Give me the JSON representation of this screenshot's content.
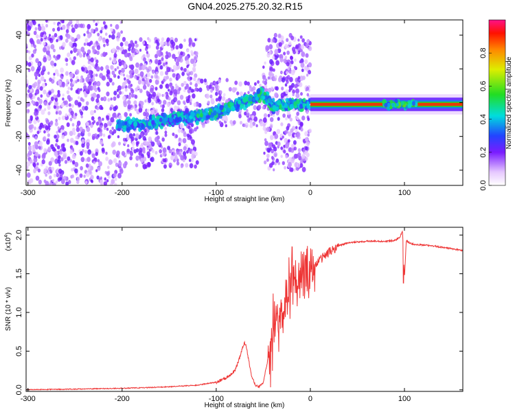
{
  "chart_data": [
    {
      "type": "heatmap",
      "title": "GN04.2025.275.20.32.R15",
      "xlabel": "Height of straight line (km)",
      "ylabel": "Frequency (Hz)",
      "xlim": [
        -302,
        162
      ],
      "ylim": [
        -49,
        49
      ],
      "xticks": [
        -300,
        -200,
        -100,
        0,
        100
      ],
      "yticks": [
        -40,
        -20,
        0,
        20,
        40
      ],
      "colorbar": {
        "label": "Normalized spectral amplitude",
        "range": [
          0,
          1
        ],
        "ticks": [
          "0.0",
          "0.2",
          "0.4",
          "0.6",
          "0.8"
        ],
        "colormap": "rainbow"
      },
      "ridge": {
        "x": [
          -205,
          -180,
          -160,
          -140,
          -120,
          -100,
          -85,
          -70,
          -60,
          -50,
          -45,
          -40,
          -20,
          0,
          75,
          85,
          95,
          110,
          162
        ],
        "y": [
          -13,
          -13,
          -11,
          -9,
          -8,
          -6,
          -3,
          1,
          3,
          5,
          2,
          -2,
          -1,
          -1,
          -1,
          -2,
          -1,
          -1,
          -1
        ]
      },
      "strong_band": {
        "x_from": 0,
        "x_to": 162,
        "frequency": -1
      }
    },
    {
      "type": "line",
      "title": "",
      "xlabel": "Height of straight line (km)",
      "ylabel": "SNR (10 * v/v)",
      "y_scale_label": "(x10",
      "y_scale_exp": "4",
      "y_scale_close": ")",
      "xlim": [
        -302,
        162
      ],
      "ylim": [
        -0.02,
        2.1
      ],
      "xticks": [
        -300,
        -200,
        -100,
        0,
        100
      ],
      "yticks": [
        "0.0",
        "0.5",
        "1.0",
        "1.5",
        "2.0"
      ],
      "ytick_values": [
        0,
        0.5,
        1.0,
        1.5,
        2.0
      ],
      "color": "#ee3333",
      "x": [
        -302,
        -250,
        -200,
        -170,
        -150,
        -120,
        -100,
        -90,
        -80,
        -75,
        -70,
        -68,
        -65,
        -62,
        -58,
        -55,
        -50,
        -45,
        -40,
        -35,
        -30,
        -25,
        -20,
        -15,
        -10,
        -5,
        0,
        5,
        10,
        20,
        30,
        40,
        60,
        80,
        90,
        95,
        98,
        100,
        102,
        105,
        110,
        130,
        162
      ],
      "y": [
        0.0,
        0.01,
        0.02,
        0.03,
        0.04,
        0.06,
        0.1,
        0.15,
        0.25,
        0.42,
        0.62,
        0.55,
        0.35,
        0.15,
        0.06,
        0.04,
        0.1,
        0.4,
        0.7,
        0.85,
        1.0,
        1.15,
        1.3,
        1.4,
        1.45,
        1.5,
        1.55,
        1.6,
        1.68,
        1.78,
        1.86,
        1.9,
        1.92,
        1.92,
        1.93,
        1.97,
        2.05,
        1.45,
        1.93,
        1.9,
        1.88,
        1.86,
        1.8
      ]
    }
  ]
}
